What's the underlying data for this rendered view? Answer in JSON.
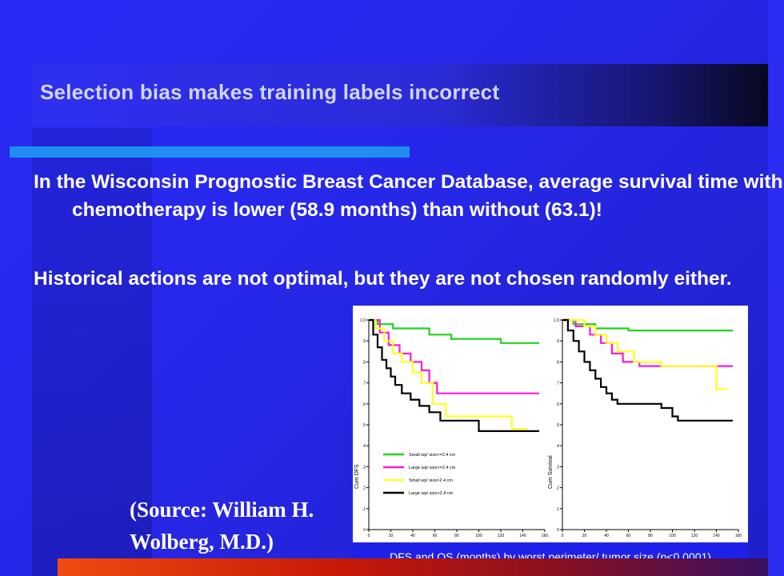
{
  "slide": {
    "title": "Selection bias makes training labels incorrect",
    "bullets": [
      "In the Wisconsin Prognostic Breast Cancer Database, average survival time with chemotherapy is lower (58.9 months) than without (63.1)!",
      "Historical actions are not optimal, but they are not chosen randomly either."
    ],
    "source": "(Source: William H. Wolberg, M.D.)",
    "colors": {
      "background": "#2a2af6",
      "accent_line": "#1e8ef2",
      "bottom_bar": "#e23a10"
    }
  },
  "chart_data": [
    {
      "type": "line",
      "step": true,
      "panel": "left",
      "ylabel": "Cum DFS",
      "x_ticks": [
        "0",
        "20",
        "40",
        "60",
        "80",
        "100",
        "120",
        "140",
        "160"
      ],
      "y_ticks": [
        "0",
        ".1",
        ".2",
        ".3",
        ".4",
        ".5",
        ".6",
        ".7",
        ".8",
        ".9",
        "1.0"
      ],
      "xlim": [
        0,
        160
      ],
      "ylim": [
        0,
        1.0
      ],
      "grid": false,
      "legend_position": "lower-left",
      "series": [
        {
          "name": "Small wp/ size<=2.4 cm",
          "color": "#1fd21f",
          "x": [
            0,
            8,
            22,
            55,
            75,
            120,
            155
          ],
          "y": [
            1.0,
            0.98,
            0.96,
            0.93,
            0.91,
            0.89,
            0.89
          ]
        },
        {
          "name": "Large wp/ size<=2.4 cm",
          "color": "#ff1ad0",
          "x": [
            0,
            10,
            18,
            28,
            38,
            48,
            55,
            62,
            155
          ],
          "y": [
            1.0,
            0.94,
            0.88,
            0.84,
            0.8,
            0.76,
            0.7,
            0.65,
            0.65
          ]
        },
        {
          "name": "Small wp/ size>2.4 cm",
          "color": "#ffff20",
          "x": [
            0,
            6,
            14,
            22,
            30,
            40,
            48,
            58,
            70,
            110,
            130,
            145
          ],
          "y": [
            1.0,
            0.96,
            0.9,
            0.84,
            0.8,
            0.75,
            0.7,
            0.6,
            0.54,
            0.54,
            0.48,
            0.48
          ]
        },
        {
          "name": "Large wp/ size>2.4 cm",
          "color": "#000000",
          "x": [
            0,
            4,
            8,
            12,
            16,
            20,
            24,
            30,
            38,
            46,
            55,
            65,
            85,
            100,
            120,
            155
          ],
          "y": [
            1.0,
            0.93,
            0.87,
            0.81,
            0.77,
            0.73,
            0.69,
            0.65,
            0.62,
            0.59,
            0.56,
            0.52,
            0.52,
            0.47,
            0.47,
            0.47
          ]
        }
      ]
    },
    {
      "type": "line",
      "step": true,
      "panel": "right",
      "ylabel": "Cum Survival",
      "x_ticks": [
        "0",
        "20",
        "40",
        "60",
        "80",
        "100",
        "120",
        "140",
        "160"
      ],
      "y_ticks": [
        "0",
        ".1",
        ".2",
        ".3",
        ".4",
        ".5",
        ".6",
        ".7",
        ".8",
        ".9",
        "1.0"
      ],
      "xlim": [
        0,
        160
      ],
      "ylim": [
        0,
        1.0
      ],
      "grid": false,
      "series": [
        {
          "name": "Small wp/ size<=2.4 cm",
          "color": "#1fd21f",
          "x": [
            0,
            10,
            30,
            60,
            155
          ],
          "y": [
            1.0,
            0.98,
            0.96,
            0.95,
            0.95
          ]
        },
        {
          "name": "Large wp/ size<=2.4 cm",
          "color": "#ff1ad0",
          "x": [
            0,
            12,
            25,
            35,
            45,
            55,
            70,
            155
          ],
          "y": [
            1.0,
            0.97,
            0.93,
            0.89,
            0.84,
            0.8,
            0.78,
            0.78
          ]
        },
        {
          "name": "Small wp/ size>2.4 cm",
          "color": "#ffff20",
          "x": [
            0,
            20,
            30,
            40,
            50,
            65,
            90,
            120,
            140,
            150
          ],
          "y": [
            1.0,
            0.97,
            0.93,
            0.89,
            0.85,
            0.8,
            0.78,
            0.78,
            0.67,
            0.67
          ]
        },
        {
          "name": "Large wp/ size>2.4 cm",
          "color": "#000000",
          "x": [
            0,
            5,
            10,
            15,
            20,
            25,
            30,
            35,
            40,
            45,
            50,
            60,
            75,
            90,
            100,
            105,
            155
          ],
          "y": [
            1.0,
            0.95,
            0.9,
            0.85,
            0.8,
            0.76,
            0.72,
            0.68,
            0.65,
            0.62,
            0.6,
            0.6,
            0.6,
            0.58,
            0.54,
            0.52,
            0.52
          ]
        }
      ]
    }
  ],
  "figure_caption": "DFS and OS (months) by worst perimeter/ tumor size (p<0.0001)"
}
